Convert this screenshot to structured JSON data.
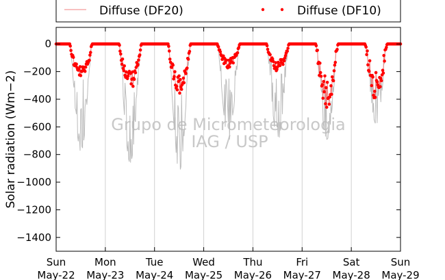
{
  "chart_data": {
    "type": "line",
    "title": "",
    "xlabel": "",
    "ylabel": "Solar radiation ($Wm{-2}$)",
    "ylabel_display": "Solar radiation (Wm−2)",
    "ylim": [
      -1500,
      120
    ],
    "yticks": [
      0,
      -200,
      -400,
      -600,
      -800,
      -1000,
      -1200,
      -1400
    ],
    "xlim": [
      "2015-05-22",
      "2015-05-29"
    ],
    "xticks": [
      {
        "day": "Sun",
        "date": "May-22"
      },
      {
        "day": "Mon",
        "date": "May-23"
      },
      {
        "day": "Tue",
        "date": "May-24"
      },
      {
        "day": "Wed",
        "date": "May-25"
      },
      {
        "day": "Thu",
        "date": "May-26"
      },
      {
        "day": "Fri",
        "date": "May-27"
      },
      {
        "day": "Sat",
        "date": "May-28"
      },
      {
        "day": "Sun",
        "date": "May-29"
      }
    ],
    "grid": "vertical",
    "legend": {
      "placement": "top",
      "entries": [
        {
          "label": "Diffuse (DF20)",
          "style": "line",
          "color": "#f08080"
        },
        {
          "label": "Diffuse (DF10)",
          "style": "dots",
          "color": "#ff0000"
        }
      ]
    },
    "watermark": [
      "Grupo de Micrometeorologia",
      "IAG / USP"
    ],
    "colors": {
      "df20_line": "#f08080",
      "df10": "#ff0000",
      "global_line": "#bbbbbb",
      "global_dots": "#000000"
    },
    "daily_minima": [
      {
        "day": "May-22",
        "global": -780,
        "df10": -260
      },
      {
        "day": "May-23",
        "global": -860,
        "df10": -330
      },
      {
        "day": "May-24",
        "global": -920,
        "df10": -370
      },
      {
        "day": "May-25",
        "global": -700,
        "df10": -180
      },
      {
        "day": "May-26",
        "global": -700,
        "df10": -200
      },
      {
        "day": "May-27",
        "global": -690,
        "df10": -460
      },
      {
        "day": "May-28",
        "global": -580,
        "df10": -430
      }
    ]
  }
}
